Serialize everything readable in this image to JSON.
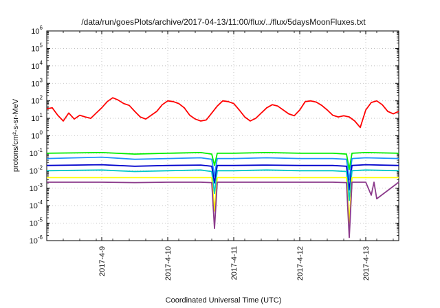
{
  "chart_data": {
    "type": "line",
    "title": "/data/run/goesPlots/archive/2017-04-13/11:00/flux/../flux/5daysMoonFluxes.txt",
    "xlabel": "Coordinated Universal Time (UTC)",
    "ylabel": "protons/cm²-s-sr-MeV",
    "x_range": [
      "2017-04-08 04:00",
      "2017-04-13 12:00"
    ],
    "x_ticks": [
      "2017-4-9",
      "2017-4-10",
      "2017-4-11",
      "2017-4-12",
      "2017-4-13"
    ],
    "y_scale": "log",
    "ylim": [
      1e-06,
      1000000
    ],
    "y_ticks": [
      {
        "base": "10",
        "exp": "6"
      },
      {
        "base": "10",
        "exp": "5"
      },
      {
        "base": "10",
        "exp": "4"
      },
      {
        "base": "10",
        "exp": "3"
      },
      {
        "base": "10",
        "exp": "2"
      },
      {
        "base": "10",
        "exp": "1"
      },
      {
        "base": "10",
        "exp": "0"
      },
      {
        "base": "10",
        "exp": "-1"
      },
      {
        "base": "10",
        "exp": "-2"
      },
      {
        "base": "10",
        "exp": "-3"
      },
      {
        "base": "10",
        "exp": "-4"
      },
      {
        "base": "10",
        "exp": "-5"
      },
      {
        "base": "10",
        "exp": "-6"
      }
    ],
    "grid": true,
    "series": [
      {
        "color": "#ff0000",
        "x": [
          "2017-04-08 04:00",
          "2017-04-08 06:00",
          "2017-04-08 08:00",
          "2017-04-08 10:00",
          "2017-04-08 12:00",
          "2017-04-08 14:00",
          "2017-04-08 16:00",
          "2017-04-08 18:00",
          "2017-04-08 20:00",
          "2017-04-08 22:00",
          "2017-04-09 00:00",
          "2017-04-09 02:00",
          "2017-04-09 04:00",
          "2017-04-09 06:00",
          "2017-04-09 08:00",
          "2017-04-09 10:00",
          "2017-04-09 12:00",
          "2017-04-09 14:00",
          "2017-04-09 16:00",
          "2017-04-09 18:00",
          "2017-04-09 20:00",
          "2017-04-09 22:00",
          "2017-04-10 00:00",
          "2017-04-10 02:00",
          "2017-04-10 04:00",
          "2017-04-10 06:00",
          "2017-04-10 08:00",
          "2017-04-10 10:00",
          "2017-04-10 12:00",
          "2017-04-10 14:00",
          "2017-04-10 16:00",
          "2017-04-10 18:00",
          "2017-04-10 20:00",
          "2017-04-10 22:00",
          "2017-04-11 00:00",
          "2017-04-11 02:00",
          "2017-04-11 04:00",
          "2017-04-11 06:00",
          "2017-04-11 08:00",
          "2017-04-11 10:00",
          "2017-04-11 12:00",
          "2017-04-11 14:00",
          "2017-04-11 16:00",
          "2017-04-11 18:00",
          "2017-04-11 20:00",
          "2017-04-11 22:00",
          "2017-04-12 00:00",
          "2017-04-12 02:00",
          "2017-04-12 04:00",
          "2017-04-12 06:00",
          "2017-04-12 08:00",
          "2017-04-12 10:00",
          "2017-04-12 12:00",
          "2017-04-12 14:00",
          "2017-04-12 16:00",
          "2017-04-12 18:00",
          "2017-04-12 20:00",
          "2017-04-12 22:00",
          "2017-04-13 00:00",
          "2017-04-13 02:00",
          "2017-04-13 04:00",
          "2017-04-13 06:00",
          "2017-04-13 08:00",
          "2017-04-13 10:00",
          "2017-04-13 12:00"
        ],
        "y": [
          35,
          40,
          15,
          7,
          20,
          9,
          15,
          12,
          10,
          20,
          40,
          90,
          150,
          110,
          70,
          55,
          25,
          12,
          9,
          15,
          25,
          60,
          100,
          90,
          70,
          40,
          15,
          9,
          7,
          8,
          20,
          50,
          100,
          90,
          70,
          30,
          12,
          7,
          10,
          20,
          40,
          60,
          50,
          30,
          18,
          14,
          30,
          90,
          100,
          85,
          55,
          30,
          15,
          12,
          14,
          12,
          7,
          3,
          30,
          80,
          100,
          60,
          25,
          18,
          25
        ]
      },
      {
        "color": "#00ee00",
        "x": [
          "2017-04-08 04:00",
          "2017-04-09 00:00",
          "2017-04-09 12:00",
          "2017-04-10 00:00",
          "2017-04-10 12:00",
          "2017-04-10 16:00",
          "2017-04-10 17:00",
          "2017-04-10 18:00",
          "2017-04-11 00:00",
          "2017-04-11 12:00",
          "2017-04-12 00:00",
          "2017-04-12 12:00",
          "2017-04-12 17:00",
          "2017-04-12 18:00",
          "2017-04-12 19:00",
          "2017-04-13 00:00",
          "2017-04-13 12:00"
        ],
        "y": [
          0.1,
          0.11,
          0.09,
          0.1,
          0.11,
          0.09,
          0.02,
          0.1,
          0.1,
          0.11,
          0.1,
          0.1,
          0.09,
          0.012,
          0.1,
          0.11,
          0.1
        ]
      },
      {
        "color": "#1e90ff",
        "x": [
          "2017-04-08 04:00",
          "2017-04-09 00:00",
          "2017-04-09 12:00",
          "2017-04-10 00:00",
          "2017-04-10 12:00",
          "2017-04-10 16:00",
          "2017-04-10 17:00",
          "2017-04-10 18:00",
          "2017-04-11 00:00",
          "2017-04-11 12:00",
          "2017-04-12 00:00",
          "2017-04-12 12:00",
          "2017-04-12 17:00",
          "2017-04-12 18:00",
          "2017-04-12 19:00",
          "2017-04-13 00:00",
          "2017-04-13 12:00"
        ],
        "y": [
          0.05,
          0.06,
          0.045,
          0.05,
          0.055,
          0.045,
          0.005,
          0.05,
          0.05,
          0.055,
          0.05,
          0.05,
          0.045,
          0.003,
          0.05,
          0.055,
          0.05
        ]
      },
      {
        "color": "#0000cc",
        "x": [
          "2017-04-08 04:00",
          "2017-04-09 00:00",
          "2017-04-09 12:00",
          "2017-04-10 00:00",
          "2017-04-10 12:00",
          "2017-04-10 16:00",
          "2017-04-10 17:00",
          "2017-04-10 18:00",
          "2017-04-11 00:00",
          "2017-04-11 12:00",
          "2017-04-12 00:00",
          "2017-04-12 12:00",
          "2017-04-12 17:00",
          "2017-04-12 18:00",
          "2017-04-12 19:00",
          "2017-04-13 00:00",
          "2017-04-13 12:00"
        ],
        "y": [
          0.02,
          0.022,
          0.018,
          0.02,
          0.021,
          0.018,
          0.002,
          0.02,
          0.02,
          0.021,
          0.02,
          0.02,
          0.018,
          0.0008,
          0.02,
          0.022,
          0.02
        ]
      },
      {
        "color": "#00c8c8",
        "x": [
          "2017-04-08 04:00",
          "2017-04-09 00:00",
          "2017-04-09 12:00",
          "2017-04-10 00:00",
          "2017-04-10 12:00",
          "2017-04-10 16:00",
          "2017-04-10 17:00",
          "2017-04-10 18:00",
          "2017-04-11 00:00",
          "2017-04-11 12:00",
          "2017-04-12 00:00",
          "2017-04-12 12:00",
          "2017-04-12 17:00",
          "2017-04-12 18:00",
          "2017-04-12 19:00",
          "2017-04-13 00:00",
          "2017-04-13 12:00"
        ],
        "y": [
          0.01,
          0.011,
          0.009,
          0.01,
          0.011,
          0.009,
          0.0005,
          0.01,
          0.01,
          0.011,
          0.01,
          0.01,
          0.009,
          0.0002,
          0.01,
          0.011,
          0.01
        ]
      },
      {
        "color": "#ffff00",
        "x": [
          "2017-04-08 04:00",
          "2017-04-09 00:00",
          "2017-04-09 12:00",
          "2017-04-10 00:00",
          "2017-04-10 12:00",
          "2017-04-10 16:00",
          "2017-04-10 17:00",
          "2017-04-10 18:00",
          "2017-04-11 00:00",
          "2017-04-11 12:00",
          "2017-04-12 00:00",
          "2017-04-12 12:00",
          "2017-04-12 17:00",
          "2017-04-12 18:00",
          "2017-04-12 19:00",
          "2017-04-13 00:00",
          "2017-04-13 12:00"
        ],
        "y": [
          0.004,
          0.004,
          0.004,
          0.004,
          0.004,
          0.004,
          5e-05,
          0.004,
          0.004,
          0.004,
          0.004,
          0.004,
          0.004,
          1e-05,
          0.004,
          0.004,
          0.004
        ]
      },
      {
        "color": "#8b3a8b",
        "x": [
          "2017-04-08 04:00",
          "2017-04-09 00:00",
          "2017-04-09 12:00",
          "2017-04-10 00:00",
          "2017-04-10 12:00",
          "2017-04-10 16:00",
          "2017-04-10 17:00",
          "2017-04-10 18:00",
          "2017-04-11 00:00",
          "2017-04-11 12:00",
          "2017-04-12 00:00",
          "2017-04-12 12:00",
          "2017-04-12 17:00",
          "2017-04-12 18:00",
          "2017-04-12 19:00",
          "2017-04-13 00:00",
          "2017-04-13 02:00",
          "2017-04-13 03:00",
          "2017-04-13 04:00",
          "2017-04-13 12:00"
        ],
        "y": [
          0.0022,
          0.0022,
          0.0021,
          0.0022,
          0.0022,
          0.0021,
          5e-06,
          0.0022,
          0.0022,
          0.0022,
          0.0022,
          0.0022,
          0.0021,
          1.5e-06,
          0.0022,
          0.0022,
          0.0004,
          0.0022,
          0.00025,
          0.0022
        ]
      }
    ]
  }
}
